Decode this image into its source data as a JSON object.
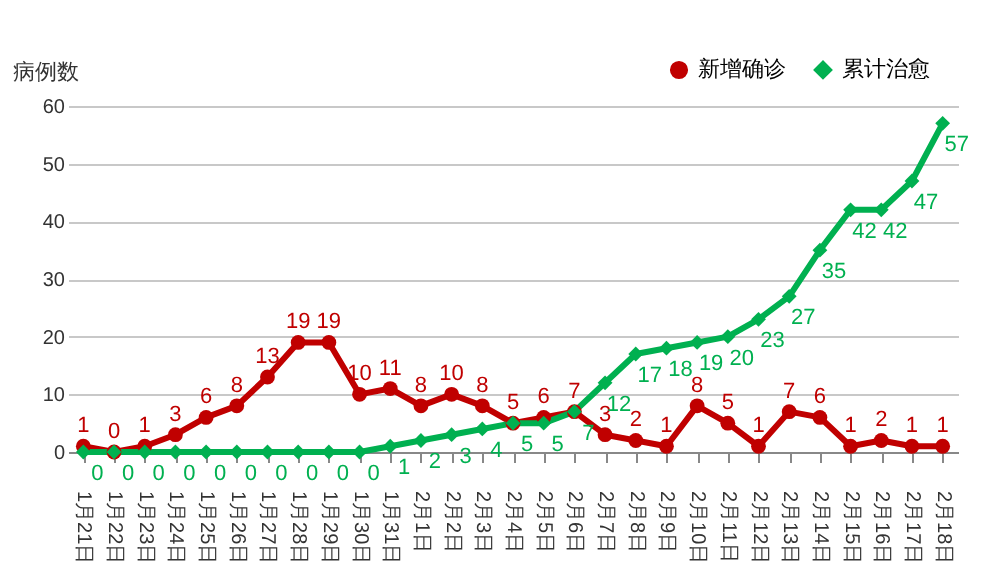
{
  "chart_data": {
    "type": "line",
    "ylabel": "病例数",
    "categories": [
      "1月21日",
      "1月22日",
      "1月23日",
      "1月24日",
      "1月25日",
      "1月26日",
      "1月27日",
      "1月28日",
      "1月29日",
      "1月30日",
      "1月31日",
      "2月1日",
      "2月2日",
      "2月3日",
      "2月4日",
      "2月5日",
      "2月6日",
      "2月7日",
      "2月8日",
      "2月9日",
      "2月10日",
      "2月11日",
      "2月12日",
      "2月13日",
      "2月14日",
      "2月15日",
      "2月16日",
      "2月17日",
      "2月18日"
    ],
    "series": [
      {
        "name": "新增确诊",
        "color": "#c00000",
        "marker": "circle",
        "values": [
          1,
          0,
          1,
          3,
          6,
          8,
          13,
          19,
          19,
          10,
          11,
          8,
          10,
          8,
          5,
          6,
          7,
          3,
          2,
          1,
          8,
          5,
          1,
          7,
          6,
          1,
          2,
          1,
          1
        ]
      },
      {
        "name": "累计治愈",
        "color": "#00b050",
        "marker": "diamond",
        "values": [
          0,
          0,
          0,
          0,
          0,
          0,
          0,
          0,
          0,
          0,
          1,
          2,
          3,
          4,
          5,
          5,
          7,
          12,
          17,
          18,
          19,
          20,
          23,
          27,
          35,
          42,
          42,
          47,
          57
        ]
      }
    ],
    "ylim": [
      0,
      60
    ],
    "yticks": [
      0,
      10,
      20,
      30,
      40,
      50,
      60
    ],
    "grid": "y",
    "legend": "top right",
    "data_labels": true
  }
}
